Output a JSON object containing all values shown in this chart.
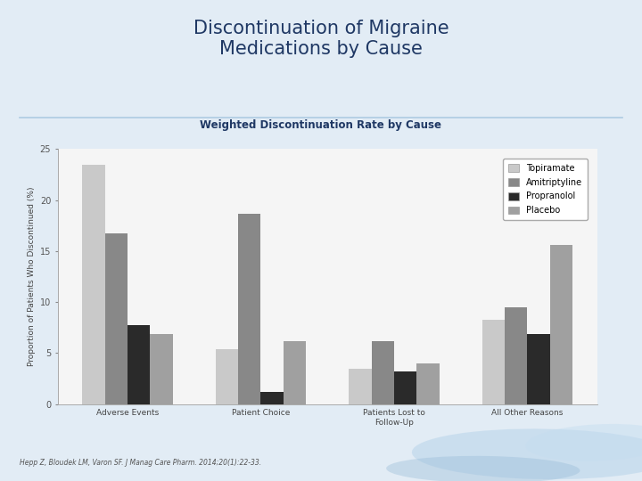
{
  "title": "Discontinuation of Migraine\nMedications by Cause",
  "subtitle": "Weighted Discontinuation Rate by Cause",
  "categories": [
    "Adverse Events",
    "Patient Choice",
    "Patients Lost to\nFollow-Up",
    "All Other Reasons"
  ],
  "series": {
    "Topiramate": [
      23.5,
      5.4,
      3.5,
      8.3
    ],
    "Amitriptyline": [
      16.7,
      18.7,
      6.2,
      9.5
    ],
    "Propranolol": [
      7.7,
      1.2,
      3.2,
      6.9
    ],
    "Placebo": [
      6.9,
      6.2,
      4.0,
      15.6
    ]
  },
  "colors": {
    "Topiramate": "#c9c9c9",
    "Amitriptyline": "#888888",
    "Propranolol": "#2a2a2a",
    "Placebo": "#a0a0a0"
  },
  "ylabel": "Proportion of Patients Who Discontinued (%)",
  "ylim": [
    0,
    25
  ],
  "yticks": [
    0,
    5,
    10,
    15,
    20,
    25
  ],
  "background_color": "#e2ecf5",
  "plot_bg": "#f5f5f5",
  "title_color": "#1f3864",
  "subtitle_color": "#1f3864",
  "citation": "Hepp Z, Bloudek LM, Varon SF. J Manag Care Pharm. 2014;20(1):22-33.",
  "sep_line_color": "#a8c8e0",
  "border_color": "#aaaaaa"
}
